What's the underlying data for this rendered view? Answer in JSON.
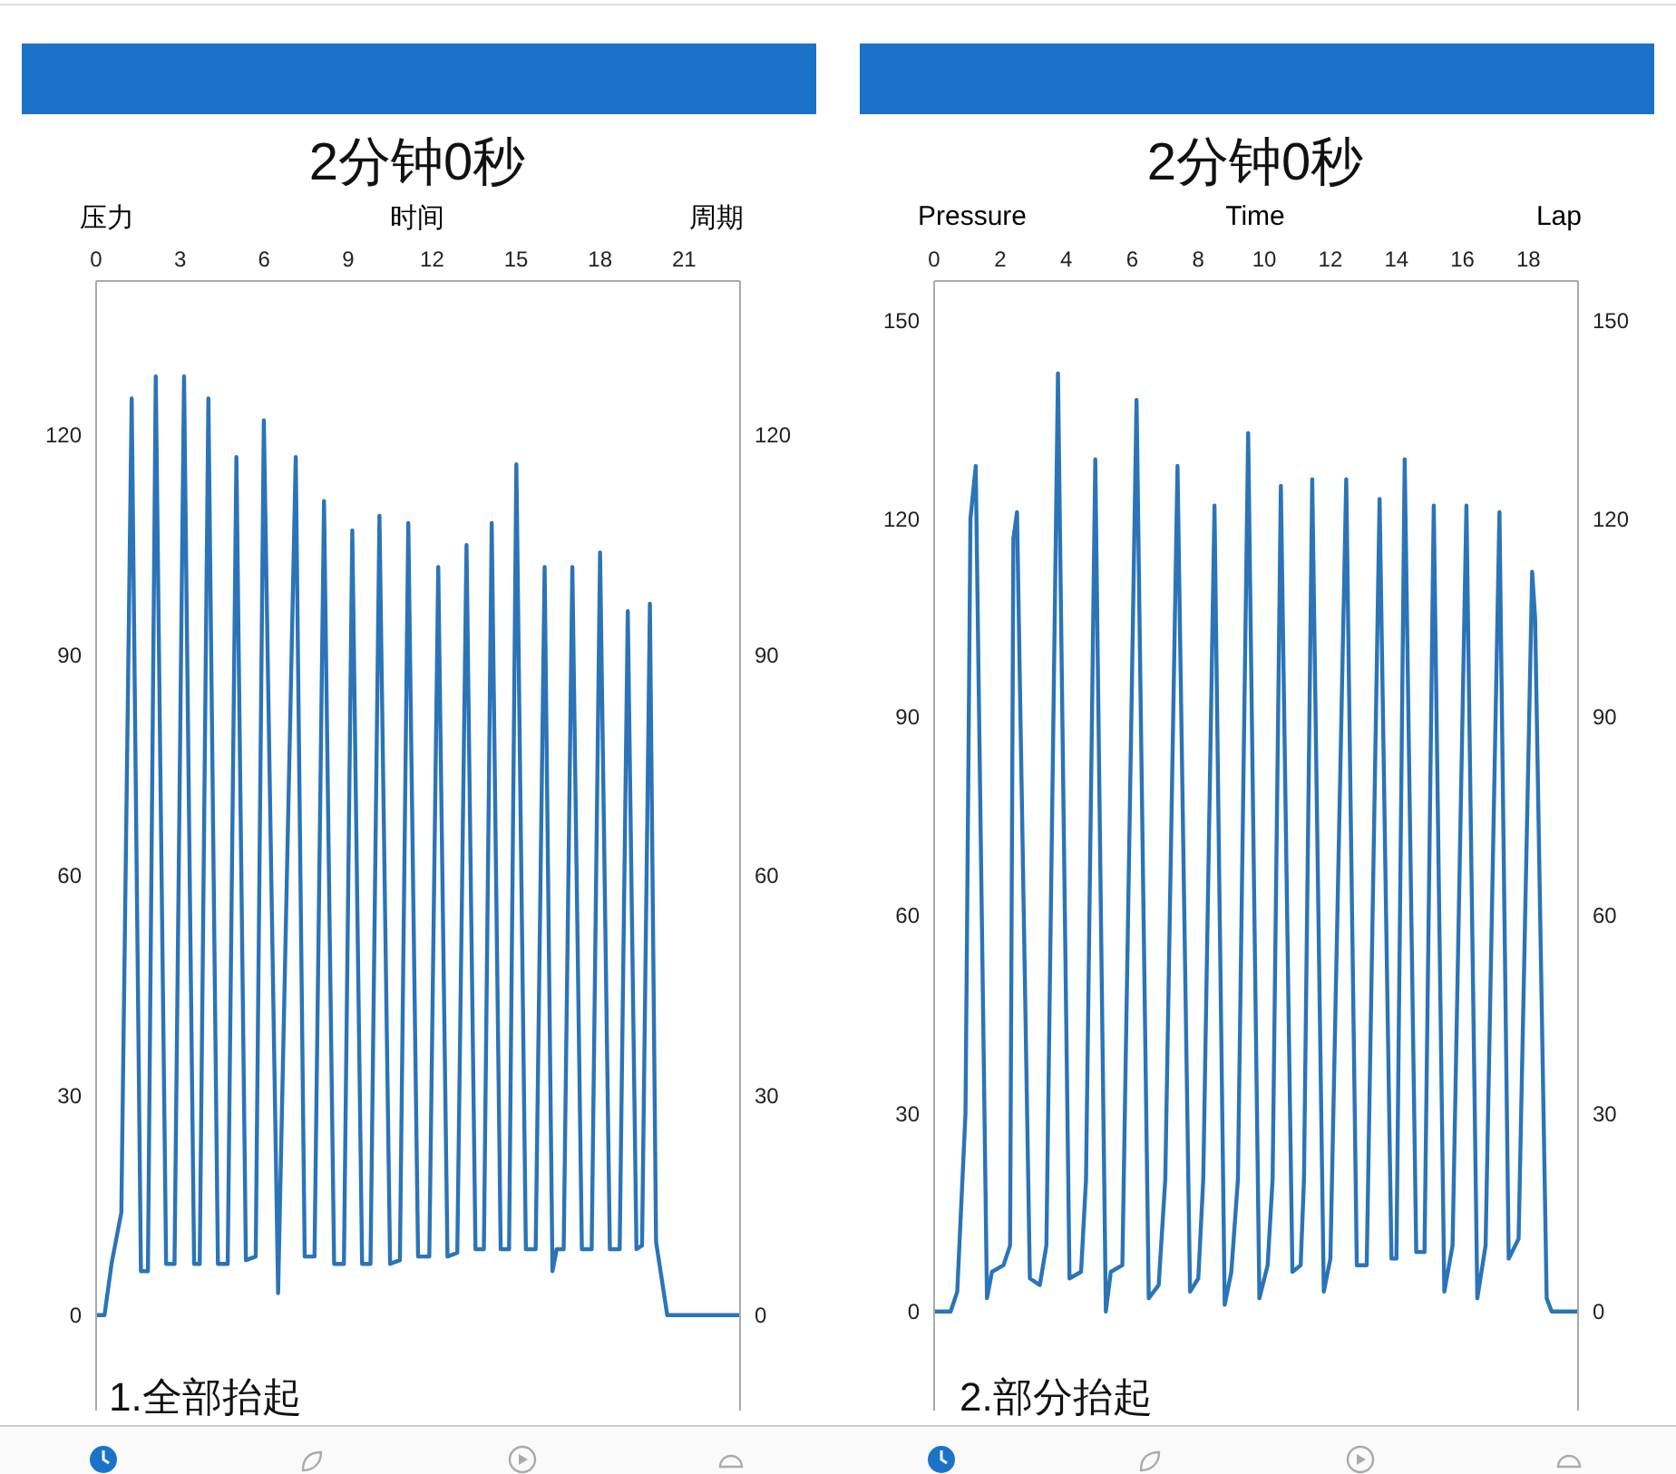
{
  "chart_data": [
    {
      "type": "line",
      "title": "2分钟0秒",
      "xlabel": "时间",
      "ylabel": "压力",
      "y2label": "周期",
      "annotations": [
        "1.全部抬起"
      ],
      "color": "#2b74b8",
      "x": [
        0,
        0.3,
        0.55,
        0.9,
        1.27,
        1.6,
        1.85,
        2.13,
        2.5,
        2.8,
        3.14,
        3.5,
        3.7,
        4.01,
        4.35,
        4.7,
        5.01,
        5.35,
        5.7,
        5.99,
        6.5,
        7.13,
        7.45,
        7.8,
        8.14,
        8.5,
        8.85,
        9.15,
        9.5,
        9.8,
        10.12,
        10.5,
        10.85,
        11.15,
        11.5,
        11.9,
        12.22,
        12.55,
        12.9,
        13.23,
        13.55,
        13.85,
        14.13,
        14.45,
        14.75,
        15.01,
        15.35,
        15.7,
        16.02,
        16.3,
        16.45,
        16.7,
        17.01,
        17.35,
        17.7,
        18.0,
        18.35,
        18.7,
        18.99,
        19.3,
        19.5,
        19.78,
        20.0,
        20.4,
        23
      ],
      "values": [
        0,
        0,
        7,
        14,
        125,
        6,
        6,
        128,
        7,
        7,
        128,
        7,
        7,
        125,
        7,
        7,
        117,
        7.5,
        8,
        122,
        3,
        117,
        8,
        8,
        111,
        7,
        7,
        107,
        7,
        7,
        109,
        7,
        7.5,
        108,
        8,
        8,
        102,
        8,
        8.5,
        105,
        9,
        9,
        108,
        9,
        9,
        116,
        9,
        9,
        102,
        6,
        9,
        9,
        102,
        9,
        9,
        104,
        9,
        9,
        96,
        9,
        9.5,
        97,
        10,
        0,
        0
      ],
      "xlim": [
        0,
        23
      ],
      "xticks": [
        0,
        3,
        6,
        9,
        12,
        15,
        18,
        21
      ],
      "ylim": [
        -13,
        141
      ],
      "yticks": [
        0,
        30,
        60,
        90,
        120
      ],
      "y2lim": [
        -13,
        141
      ],
      "y2ticks": [
        0,
        30,
        60,
        90,
        120
      ]
    },
    {
      "type": "line",
      "title": "2分钟0秒",
      "xlabel": "Time",
      "ylabel": "Pressure",
      "y2label": "Lap",
      "annotations": [
        "2.部分抬起"
      ],
      "color": "#2b74b8",
      "x": [
        0,
        0.5,
        0.7,
        0.95,
        1.1,
        1.26,
        1.6,
        1.75,
        2.1,
        2.3,
        2.4,
        2.51,
        2.9,
        3.2,
        3.4,
        3.75,
        4.1,
        4.45,
        4.6,
        4.88,
        5.2,
        5.35,
        5.7,
        6.13,
        6.5,
        6.8,
        7.0,
        7.37,
        7.75,
        8.0,
        8.15,
        8.49,
        8.8,
        9.0,
        9.2,
        9.51,
        9.85,
        10.1,
        10.25,
        10.5,
        10.85,
        11.1,
        11.2,
        11.45,
        11.8,
        12.0,
        12.48,
        12.8,
        13.1,
        13.49,
        13.85,
        14.0,
        14.25,
        14.6,
        14.85,
        15.13,
        15.45,
        15.7,
        16.12,
        16.45,
        16.7,
        17.12,
        17.4,
        17.7,
        18.11,
        18.2,
        18.55,
        18.7,
        19.5
      ],
      "values": [
        0,
        0,
        3,
        30,
        120,
        128,
        2,
        6,
        7,
        10,
        117,
        121,
        5,
        4,
        10,
        142,
        5,
        6,
        20,
        129,
        0,
        6,
        7,
        138,
        2,
        4,
        20,
        128,
        3,
        5,
        20,
        122,
        1,
        6,
        20,
        133,
        2,
        7,
        20,
        125,
        6,
        7,
        20,
        126,
        3,
        8,
        126,
        7,
        7,
        123,
        8,
        8,
        129,
        9,
        9,
        122,
        3,
        10,
        122,
        2,
        10,
        121,
        8,
        11,
        112,
        105,
        2,
        0,
        0
      ],
      "xlim": [
        0,
        19.5
      ],
      "xticks": [
        0,
        2,
        4,
        6,
        8,
        10,
        12,
        14,
        16,
        18
      ],
      "ylim": [
        -15,
        156
      ],
      "yticks": [
        0,
        30,
        60,
        90,
        120,
        150
      ],
      "y2lim": [
        -15,
        156
      ],
      "y2ticks": [
        0,
        30,
        60,
        90,
        120,
        150
      ]
    }
  ]
}
